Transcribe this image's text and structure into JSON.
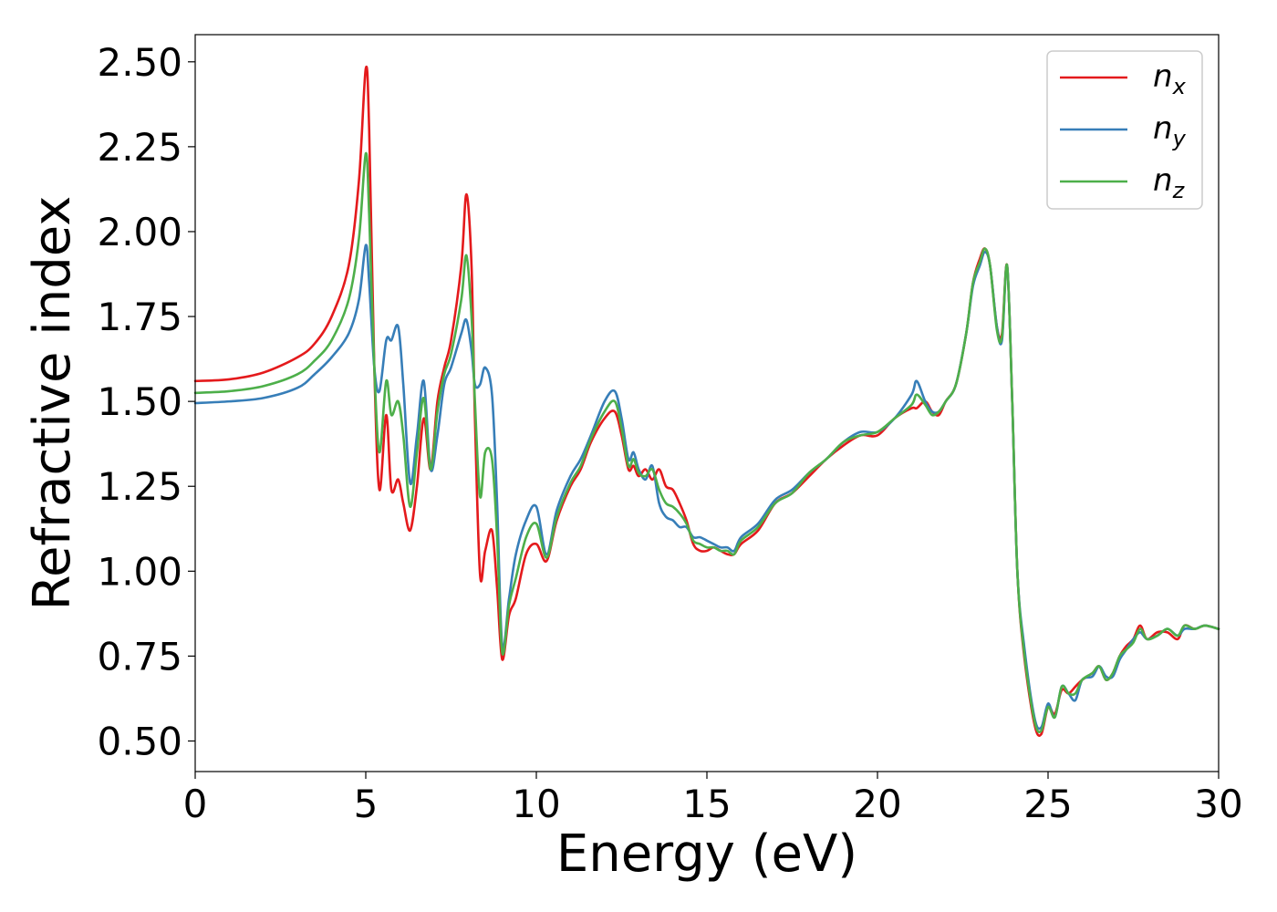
{
  "chart_data": {
    "type": "line",
    "xlabel": "Energy (eV)",
    "ylabel": "Refractive index",
    "xlim": [
      0,
      30
    ],
    "ylim": [
      0.41,
      2.58
    ],
    "xticks": [
      0,
      5,
      10,
      15,
      20,
      25,
      30
    ],
    "xtick_labels": [
      "0",
      "5",
      "10",
      "15",
      "20",
      "25",
      "30"
    ],
    "yticks": [
      0.5,
      0.75,
      1.0,
      1.25,
      1.5,
      1.75,
      2.0,
      2.25,
      2.5
    ],
    "ytick_labels": [
      "0.50",
      "0.75",
      "1.00",
      "1.25",
      "1.50",
      "1.75",
      "2.00",
      "2.25",
      "2.50"
    ],
    "grid": false,
    "legend_position": "top-right",
    "series": [
      {
        "name": "n_x",
        "label_main": "n",
        "label_sub": "x",
        "color": "#e41a1c",
        "x": [
          0,
          1,
          2,
          3,
          3.5,
          4,
          4.5,
          4.8,
          5.0,
          5.1,
          5.25,
          5.4,
          5.6,
          5.75,
          5.95,
          6.1,
          6.3,
          6.5,
          6.7,
          6.9,
          7.1,
          7.3,
          7.5,
          7.8,
          7.95,
          8.1,
          8.2,
          8.35,
          8.5,
          8.7,
          8.85,
          9.0,
          9.2,
          9.4,
          9.7,
          10.0,
          10.3,
          10.6,
          11.0,
          11.3,
          11.6,
          12.0,
          12.3,
          12.5,
          12.7,
          12.85,
          13.0,
          13.2,
          13.4,
          13.6,
          13.8,
          14.0,
          14.2,
          14.4,
          14.6,
          14.8,
          15.0,
          15.2,
          15.4,
          15.6,
          15.8,
          16.0,
          16.5,
          17.0,
          17.5,
          18.0,
          18.5,
          19.0,
          19.5,
          20.0,
          20.5,
          21.0,
          21.15,
          21.4,
          21.6,
          21.8,
          22.0,
          22.3,
          22.6,
          22.8,
          23.0,
          23.15,
          23.3,
          23.5,
          23.65,
          23.8,
          23.95,
          24.1,
          24.3,
          24.6,
          24.8,
          25.0,
          25.2,
          25.4,
          25.6,
          25.8,
          26.0,
          26.3,
          26.5,
          26.7,
          26.9,
          27.1,
          27.3,
          27.5,
          27.7,
          27.9,
          28.2,
          28.5,
          28.8,
          29.0,
          29.3,
          29.6,
          30.0
        ],
        "y": [
          1.56,
          1.565,
          1.585,
          1.63,
          1.67,
          1.75,
          1.9,
          2.15,
          2.48,
          2.3,
          1.6,
          1.24,
          1.46,
          1.24,
          1.27,
          1.2,
          1.12,
          1.25,
          1.45,
          1.3,
          1.5,
          1.6,
          1.68,
          1.9,
          2.11,
          1.9,
          1.45,
          0.99,
          1.06,
          1.12,
          0.95,
          0.74,
          0.87,
          0.92,
          1.05,
          1.08,
          1.03,
          1.15,
          1.25,
          1.3,
          1.38,
          1.45,
          1.47,
          1.4,
          1.3,
          1.31,
          1.28,
          1.3,
          1.27,
          1.3,
          1.25,
          1.24,
          1.2,
          1.15,
          1.08,
          1.06,
          1.06,
          1.07,
          1.06,
          1.05,
          1.05,
          1.08,
          1.12,
          1.2,
          1.23,
          1.28,
          1.33,
          1.37,
          1.4,
          1.4,
          1.45,
          1.48,
          1.48,
          1.5,
          1.47,
          1.46,
          1.5,
          1.55,
          1.7,
          1.85,
          1.92,
          1.95,
          1.9,
          1.72,
          1.7,
          1.9,
          1.5,
          1.0,
          0.75,
          0.55,
          0.52,
          0.6,
          0.58,
          0.65,
          0.64,
          0.66,
          0.68,
          0.7,
          0.72,
          0.68,
          0.7,
          0.75,
          0.78,
          0.8,
          0.84,
          0.8,
          0.82,
          0.82,
          0.8,
          0.84,
          0.83,
          0.84,
          0.83
        ]
      },
      {
        "name": "n_y",
        "label_main": "n",
        "label_sub": "y",
        "color": "#377eb8",
        "x": [
          0,
          1,
          2,
          3,
          3.5,
          4,
          4.5,
          4.8,
          5.0,
          5.1,
          5.25,
          5.4,
          5.6,
          5.75,
          5.95,
          6.1,
          6.3,
          6.5,
          6.7,
          6.9,
          7.1,
          7.3,
          7.5,
          7.8,
          7.95,
          8.1,
          8.2,
          8.35,
          8.5,
          8.7,
          8.85,
          9.0,
          9.2,
          9.4,
          9.7,
          10.0,
          10.3,
          10.6,
          11.0,
          11.3,
          11.6,
          12.0,
          12.3,
          12.5,
          12.7,
          12.85,
          13.0,
          13.2,
          13.4,
          13.6,
          13.8,
          14.0,
          14.2,
          14.4,
          14.6,
          14.8,
          15.0,
          15.2,
          15.4,
          15.6,
          15.8,
          16.0,
          16.5,
          17.0,
          17.5,
          18.0,
          18.5,
          19.0,
          19.5,
          20.0,
          20.5,
          21.0,
          21.15,
          21.4,
          21.6,
          21.8,
          22.0,
          22.3,
          22.6,
          22.8,
          23.0,
          23.15,
          23.3,
          23.5,
          23.65,
          23.8,
          23.95,
          24.1,
          24.3,
          24.6,
          24.8,
          25.0,
          25.2,
          25.4,
          25.6,
          25.8,
          26.0,
          26.3,
          26.5,
          26.7,
          26.9,
          27.1,
          27.3,
          27.5,
          27.7,
          27.9,
          28.2,
          28.5,
          28.8,
          29.0,
          29.3,
          29.6,
          30.0
        ],
        "y": [
          1.495,
          1.5,
          1.51,
          1.54,
          1.58,
          1.63,
          1.7,
          1.8,
          1.96,
          1.85,
          1.6,
          1.53,
          1.68,
          1.68,
          1.72,
          1.55,
          1.26,
          1.4,
          1.56,
          1.3,
          1.4,
          1.55,
          1.6,
          1.7,
          1.74,
          1.65,
          1.55,
          1.55,
          1.6,
          1.52,
          1.2,
          0.78,
          0.92,
          1.05,
          1.15,
          1.19,
          1.05,
          1.18,
          1.28,
          1.33,
          1.4,
          1.5,
          1.53,
          1.45,
          1.33,
          1.35,
          1.3,
          1.27,
          1.31,
          1.2,
          1.16,
          1.15,
          1.13,
          1.13,
          1.1,
          1.1,
          1.09,
          1.08,
          1.07,
          1.07,
          1.06,
          1.1,
          1.14,
          1.21,
          1.24,
          1.29,
          1.33,
          1.38,
          1.41,
          1.41,
          1.45,
          1.52,
          1.56,
          1.5,
          1.47,
          1.47,
          1.5,
          1.55,
          1.7,
          1.84,
          1.9,
          1.94,
          1.9,
          1.72,
          1.68,
          1.9,
          1.5,
          1.0,
          0.78,
          0.57,
          0.54,
          0.61,
          0.57,
          0.66,
          0.64,
          0.62,
          0.68,
          0.69,
          0.72,
          0.69,
          0.69,
          0.74,
          0.77,
          0.8,
          0.82,
          0.8,
          0.81,
          0.83,
          0.81,
          0.83,
          0.83,
          0.84,
          0.83
        ]
      },
      {
        "name": "n_z",
        "label_main": "n",
        "label_sub": "z",
        "color": "#4daf4a",
        "x": [
          0,
          1,
          2,
          3,
          3.5,
          4,
          4.5,
          4.8,
          5.0,
          5.1,
          5.25,
          5.4,
          5.6,
          5.75,
          5.95,
          6.1,
          6.3,
          6.5,
          6.7,
          6.9,
          7.1,
          7.3,
          7.5,
          7.8,
          7.95,
          8.1,
          8.2,
          8.35,
          8.5,
          8.7,
          8.85,
          9.0,
          9.2,
          9.4,
          9.7,
          10.0,
          10.3,
          10.6,
          11.0,
          11.3,
          11.6,
          12.0,
          12.3,
          12.5,
          12.7,
          12.85,
          13.0,
          13.2,
          13.4,
          13.6,
          13.8,
          14.0,
          14.2,
          14.4,
          14.6,
          14.8,
          15.0,
          15.2,
          15.4,
          15.6,
          15.8,
          16.0,
          16.5,
          17.0,
          17.5,
          18.0,
          18.5,
          19.0,
          19.5,
          20.0,
          20.5,
          21.0,
          21.15,
          21.4,
          21.6,
          21.8,
          22.0,
          22.3,
          22.6,
          22.8,
          23.0,
          23.15,
          23.3,
          23.5,
          23.65,
          23.8,
          23.95,
          24.1,
          24.3,
          24.6,
          24.8,
          25.0,
          25.2,
          25.4,
          25.6,
          25.8,
          26.0,
          26.3,
          26.5,
          26.7,
          26.9,
          27.1,
          27.3,
          27.5,
          27.7,
          27.9,
          28.2,
          28.5,
          28.8,
          29.0,
          29.3,
          29.6,
          30.0
        ],
        "y": [
          1.525,
          1.53,
          1.545,
          1.58,
          1.62,
          1.68,
          1.8,
          1.98,
          2.23,
          2.05,
          1.6,
          1.35,
          1.56,
          1.46,
          1.5,
          1.4,
          1.19,
          1.35,
          1.51,
          1.3,
          1.47,
          1.58,
          1.64,
          1.8,
          1.93,
          1.75,
          1.5,
          1.22,
          1.35,
          1.33,
          1.1,
          0.76,
          0.9,
          0.98,
          1.1,
          1.14,
          1.04,
          1.16,
          1.26,
          1.31,
          1.39,
          1.47,
          1.5,
          1.42,
          1.31,
          1.33,
          1.29,
          1.28,
          1.3,
          1.24,
          1.2,
          1.19,
          1.17,
          1.14,
          1.09,
          1.08,
          1.07,
          1.07,
          1.06,
          1.06,
          1.05,
          1.09,
          1.13,
          1.2,
          1.23,
          1.29,
          1.33,
          1.38,
          1.4,
          1.41,
          1.45,
          1.49,
          1.52,
          1.49,
          1.46,
          1.47,
          1.5,
          1.55,
          1.7,
          1.85,
          1.91,
          1.95,
          1.9,
          1.71,
          1.69,
          1.9,
          1.5,
          1.0,
          0.76,
          0.56,
          0.53,
          0.6,
          0.57,
          0.66,
          0.64,
          0.64,
          0.68,
          0.7,
          0.72,
          0.68,
          0.7,
          0.75,
          0.77,
          0.79,
          0.83,
          0.8,
          0.81,
          0.83,
          0.81,
          0.84,
          0.83,
          0.84,
          0.83
        ]
      }
    ]
  }
}
